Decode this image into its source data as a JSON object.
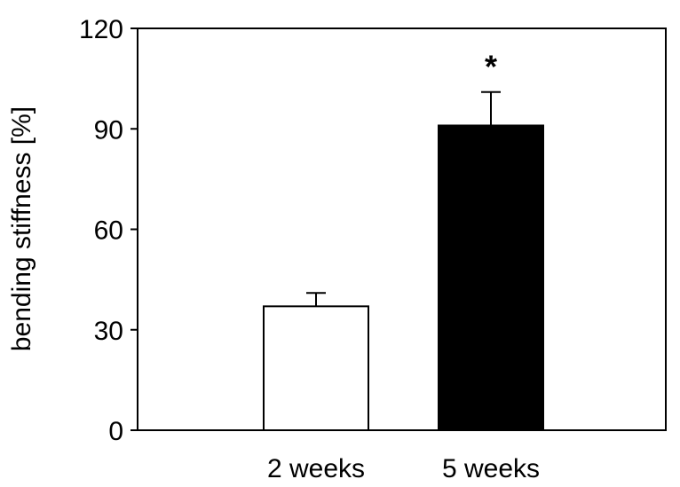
{
  "chart_data": {
    "type": "bar",
    "title": "",
    "xlabel": "",
    "ylabel": "bending stiffness [%]",
    "ylim": [
      0,
      120
    ],
    "yticks": [
      0,
      30,
      60,
      90,
      120
    ],
    "categories": [
      "2 weeks",
      "5 weeks"
    ],
    "values": [
      37,
      91
    ],
    "error": [
      4,
      10
    ],
    "bar_colors": [
      "#ffffff",
      "#000000"
    ],
    "annotations": [
      {
        "category": "5 weeks",
        "text": "*"
      }
    ],
    "grid": false,
    "legend": "none"
  }
}
